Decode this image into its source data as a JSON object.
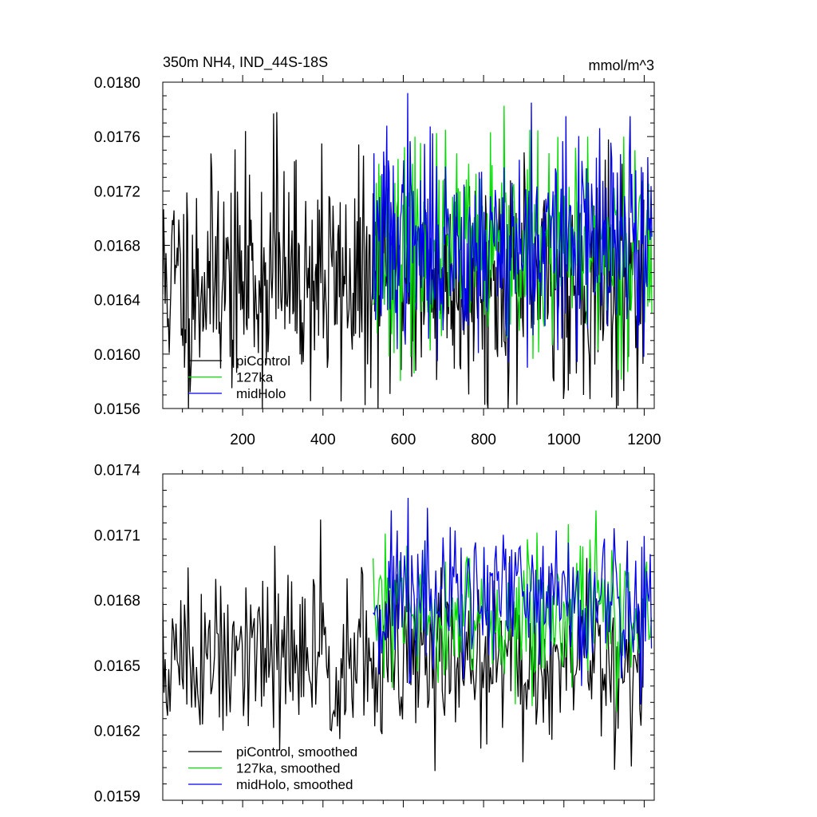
{
  "header": {
    "title": "350m NH4, IND_44S-18S",
    "units": "mmol/m^3"
  },
  "colors": {
    "piControl": "#000000",
    "127ka": "#00dd00",
    "midHolo": "#0000ee"
  },
  "chart_data": [
    {
      "type": "line",
      "title": "350m NH4, IND_44S-18S",
      "units": "mmol/m^3",
      "xlim": [
        1,
        1225
      ],
      "ylim": [
        0.0156,
        0.018
      ],
      "x_ticks": [
        200,
        400,
        600,
        800,
        1000,
        1200
      ],
      "x_tick_labels": [
        "200",
        "400",
        "600",
        "800",
        "1000",
        "1200"
      ],
      "y_ticks": [
        0.0156,
        0.016,
        0.0164,
        0.0168,
        0.0172,
        0.0176,
        0.018
      ],
      "y_tick_labels": [
        "0.0156",
        "0.0160",
        "0.0164",
        "0.0168",
        "0.0172",
        "0.0176",
        "0.0180"
      ],
      "grid": false,
      "legend_position": "bottom-left",
      "series": [
        {
          "name": "piControl",
          "color": "#000000",
          "x_range": [
            1,
            1200
          ],
          "mean": 0.01655,
          "noise_sd": 0.0004,
          "noise_seed": 11,
          "peaks": [
            {
              "x": 55,
              "y": 0.0159
            },
            {
              "x": 70,
              "y": 0.01572
            },
            {
              "x": 140,
              "y": 0.0172
            },
            {
              "x": 178,
              "y": 0.0159
            },
            {
              "x": 218,
              "y": 0.01732
            },
            {
              "x": 278,
              "y": 0.01777
            },
            {
              "x": 285,
              "y": 0.01778
            },
            {
              "x": 345,
              "y": 0.0164
            },
            {
              "x": 398,
              "y": 0.01755
            },
            {
              "x": 412,
              "y": 0.0159
            },
            {
              "x": 520,
              "y": 0.01575
            },
            {
              "x": 810,
              "y": 0.01565
            },
            {
              "x": 975,
              "y": 0.0158
            },
            {
              "x": 1050,
              "y": 0.0157
            },
            {
              "x": 1120,
              "y": 0.01568
            },
            {
              "x": 1135,
              "y": 0.01562
            }
          ]
        },
        {
          "name": "127ka",
          "color": "#00dd00",
          "x_range": [
            525,
            1220
          ],
          "mean": 0.01675,
          "noise_sd": 0.00035,
          "noise_seed": 23,
          "peaks": [
            {
              "x": 540,
              "y": 0.0174
            },
            {
              "x": 630,
              "y": 0.0176
            },
            {
              "x": 705,
              "y": 0.01765
            },
            {
              "x": 915,
              "y": 0.01765
            },
            {
              "x": 1060,
              "y": 0.0176
            },
            {
              "x": 1150,
              "y": 0.0176
            },
            {
              "x": 1178,
              "y": 0.0175
            },
            {
              "x": 620,
              "y": 0.01598
            },
            {
              "x": 860,
              "y": 0.01612
            }
          ]
        },
        {
          "name": "midHolo",
          "color": "#0000ee",
          "x_range": [
            525,
            1220
          ],
          "mean": 0.0168,
          "noise_sd": 0.00036,
          "noise_seed": 37,
          "peaks": [
            {
              "x": 560,
              "y": 0.01768
            },
            {
              "x": 612,
              "y": 0.01792
            },
            {
              "x": 920,
              "y": 0.01785
            },
            {
              "x": 1005,
              "y": 0.01775
            },
            {
              "x": 1165,
              "y": 0.01775
            },
            {
              "x": 910,
              "y": 0.0159
            },
            {
              "x": 1200,
              "y": 0.01598
            }
          ]
        }
      ]
    },
    {
      "type": "line",
      "xlim": [
        1,
        1225
      ],
      "ylim": [
        0.01588,
        0.01738
      ],
      "x_ticks": [
        200,
        400,
        600,
        800,
        1000,
        1200
      ],
      "x_tick_labels": [],
      "y_ticks": [
        0.0159,
        0.0162,
        0.0165,
        0.0168,
        0.0171,
        0.0174
      ],
      "y_tick_labels": [
        "0.0159",
        "0.0162",
        "0.0165",
        "0.0168",
        "0.0171",
        "0.0174"
      ],
      "grid": false,
      "legend_position": "bottom-left",
      "series": [
        {
          "name": "piControl, smoothed",
          "color": "#000000",
          "x_range": [
            1,
            1200
          ],
          "mean": 0.01652,
          "noise_sd": 0.0002,
          "noise_seed": 51,
          "peaks": [
            {
              "x": 65,
              "y": 0.01695
            },
            {
              "x": 150,
              "y": 0.0162
            },
            {
              "x": 280,
              "y": 0.01705
            },
            {
              "x": 395,
              "y": 0.01717
            },
            {
              "x": 460,
              "y": 0.0169
            },
            {
              "x": 530,
              "y": 0.01622
            },
            {
              "x": 1125,
              "y": 0.01602
            }
          ]
        },
        {
          "name": "127ka, smoothed",
          "color": "#00dd00",
          "x_range": [
            525,
            1220
          ],
          "mean": 0.01673,
          "noise_sd": 0.00016,
          "noise_seed": 63,
          "peaks": [
            {
              "x": 610,
              "y": 0.01705
            },
            {
              "x": 760,
              "y": 0.017
            },
            {
              "x": 910,
              "y": 0.01708
            },
            {
              "x": 1040,
              "y": 0.01705
            },
            {
              "x": 1120,
              "y": 0.01703
            }
          ]
        },
        {
          "name": "midHolo, smoothed",
          "color": "#0000ee",
          "x_range": [
            525,
            1220
          ],
          "mean": 0.0168,
          "noise_sd": 0.00018,
          "noise_seed": 71,
          "peaks": [
            {
              "x": 585,
              "y": 0.01712
            },
            {
              "x": 612,
              "y": 0.01727
            },
            {
              "x": 730,
              "y": 0.01712
            },
            {
              "x": 850,
              "y": 0.0171
            },
            {
              "x": 980,
              "y": 0.01712
            },
            {
              "x": 1125,
              "y": 0.01713
            },
            {
              "x": 1190,
              "y": 0.01632
            }
          ]
        }
      ]
    }
  ]
}
